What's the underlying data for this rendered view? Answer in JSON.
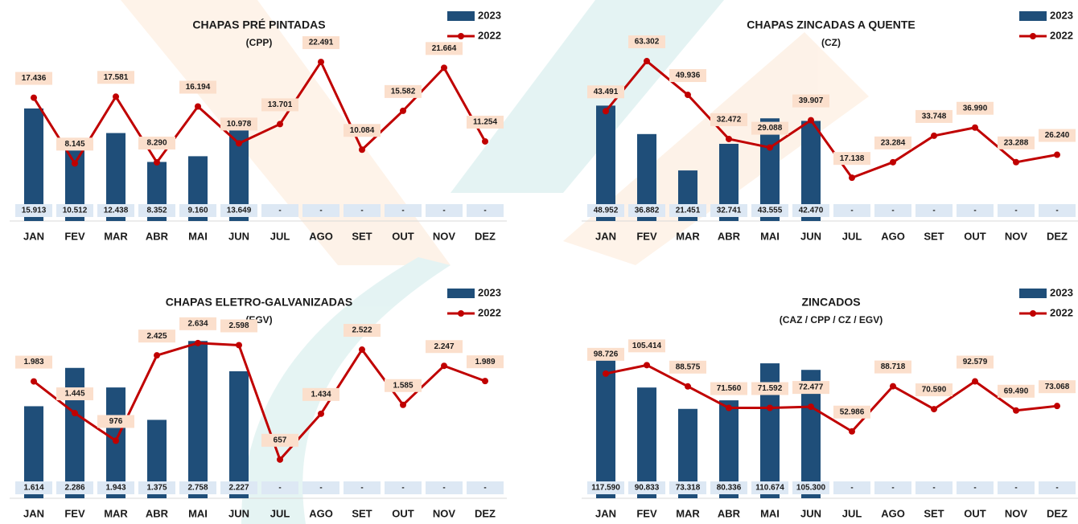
{
  "chart_data": [
    {
      "type": "combo",
      "title": "CHAPAS PRÉ PINTADAS",
      "subtitle": "(CPP)",
      "categories": [
        "JAN",
        "FEV",
        "MAR",
        "ABR",
        "MAI",
        "JUN",
        "JUL",
        "AGO",
        "SET",
        "OUT",
        "NOV",
        "DEZ"
      ],
      "ylim": [
        0,
        25000
      ],
      "y2lim": [
        0,
        25000
      ],
      "series": [
        {
          "name": "2023",
          "type": "bar",
          "color": "#1f4e79",
          "values": [
            15913,
            10512,
            12438,
            8352,
            9160,
            13649,
            null,
            null,
            null,
            null,
            null,
            null
          ],
          "value_labels": [
            "15.913",
            "10.512",
            "12.438",
            "8.352",
            "9.160",
            "13.649",
            "-",
            "-",
            "-",
            "-",
            "-",
            "-"
          ]
        },
        {
          "name": "2022",
          "type": "line",
          "axis": "y2",
          "color": "#c00000",
          "values": [
            17436,
            8145,
            17581,
            8290,
            16194,
            10978,
            13701,
            22491,
            10084,
            15582,
            21664,
            11254
          ],
          "value_labels": [
            "17.436",
            "8.145",
            "17.581",
            "8.290",
            "16.194",
            "10.978",
            "13.701",
            "22.491",
            "10.084",
            "15.582",
            "21.664",
            "11.254"
          ]
        }
      ]
    },
    {
      "type": "combo",
      "title": "CHAPAS ZINCADAS A QUENTE",
      "subtitle": "(CZ)",
      "categories": [
        "JAN",
        "FEV",
        "MAR",
        "ABR",
        "MAI",
        "JUN",
        "JUL",
        "AGO",
        "SET",
        "OUT",
        "NOV",
        "DEZ"
      ],
      "ylim": [
        0,
        75000
      ],
      "y2lim": [
        0,
        70000
      ],
      "series": [
        {
          "name": "2023",
          "type": "bar",
          "color": "#1f4e79",
          "values": [
            48952,
            36882,
            21451,
            32741,
            43555,
            42470,
            null,
            null,
            null,
            null,
            null,
            null
          ],
          "value_labels": [
            "48.952",
            "36.882",
            "21.451",
            "32.741",
            "43.555",
            "42.470",
            "-",
            "-",
            "-",
            "-",
            "-",
            "-"
          ]
        },
        {
          "name": "2022",
          "type": "line",
          "axis": "y2",
          "color": "#c00000",
          "values": [
            43491,
            63302,
            49936,
            32472,
            29088,
            39907,
            17138,
            23284,
            33748,
            36990,
            23288,
            26240
          ],
          "value_labels": [
            "43.491",
            "63.302",
            "49.936",
            "32.472",
            "29.088",
            "39.907",
            "17.138",
            "23.284",
            "33.748",
            "36.990",
            "23.288",
            "26.240"
          ]
        }
      ]
    },
    {
      "type": "combo",
      "title": "CHAPAS ELETRO-GALVANIZADAS",
      "subtitle": "(EGV)",
      "categories": [
        "JAN",
        "FEV",
        "MAR",
        "ABR",
        "MAI",
        "JUN",
        "JUL",
        "AGO",
        "SET",
        "OUT",
        "NOV",
        "DEZ"
      ],
      "ylim": [
        0,
        3100
      ],
      "y2lim": [
        0,
        3000
      ],
      "series": [
        {
          "name": "2023",
          "type": "bar",
          "color": "#1f4e79",
          "values": [
            1614,
            2286,
            1943,
            1375,
            2758,
            2227,
            null,
            null,
            null,
            null,
            null,
            null
          ],
          "value_labels": [
            "1.614",
            "2.286",
            "1.943",
            "1.375",
            "2.758",
            "2.227",
            "-",
            "-",
            "-",
            "-",
            "-",
            "-"
          ]
        },
        {
          "name": "2022",
          "type": "line",
          "axis": "y2",
          "color": "#c00000",
          "values": [
            1983,
            1445,
            976,
            2425,
            2634,
            2598,
            657,
            1434,
            2522,
            1585,
            2247,
            1989
          ],
          "value_labels": [
            "1.983",
            "1.445",
            "976",
            "2.425",
            "2.634",
            "2.598",
            "657",
            "1.434",
            "2.522",
            "1.585",
            "2.247",
            "1.989"
          ]
        }
      ]
    },
    {
      "type": "combo",
      "title": "ZINCADOS",
      "subtitle": "(CAZ / CPP / CZ / EGV)",
      "categories": [
        "JAN",
        "FEV",
        "MAR",
        "ABR",
        "MAI",
        "JUN",
        "JUL",
        "AGO",
        "SET",
        "OUT",
        "NOV",
        "DEZ"
      ],
      "ylim": [
        0,
        145000
      ],
      "y2lim": [
        0,
        140000
      ],
      "series": [
        {
          "name": "2023",
          "type": "bar",
          "color": "#1f4e79",
          "values": [
            117590,
            90833,
            73318,
            80336,
            110674,
            105300,
            null,
            null,
            null,
            null,
            null,
            null
          ],
          "value_labels": [
            "117.590",
            "90.833",
            "73.318",
            "80.336",
            "110.674",
            "105.300",
            "-",
            "-",
            "-",
            "-",
            "-",
            "-"
          ]
        },
        {
          "name": "2022",
          "type": "line",
          "axis": "y2",
          "color": "#c00000",
          "values": [
            98726,
            105414,
            88575,
            71560,
            71592,
            72477,
            52986,
            88718,
            70590,
            92579,
            69490,
            73068
          ],
          "value_labels": [
            "98.726",
            "105.414",
            "88.575",
            "71.560",
            "71.592",
            "72.477",
            "52.986",
            "88.718",
            "70.590",
            "92.579",
            "69.490",
            "73.068"
          ]
        }
      ]
    }
  ]
}
